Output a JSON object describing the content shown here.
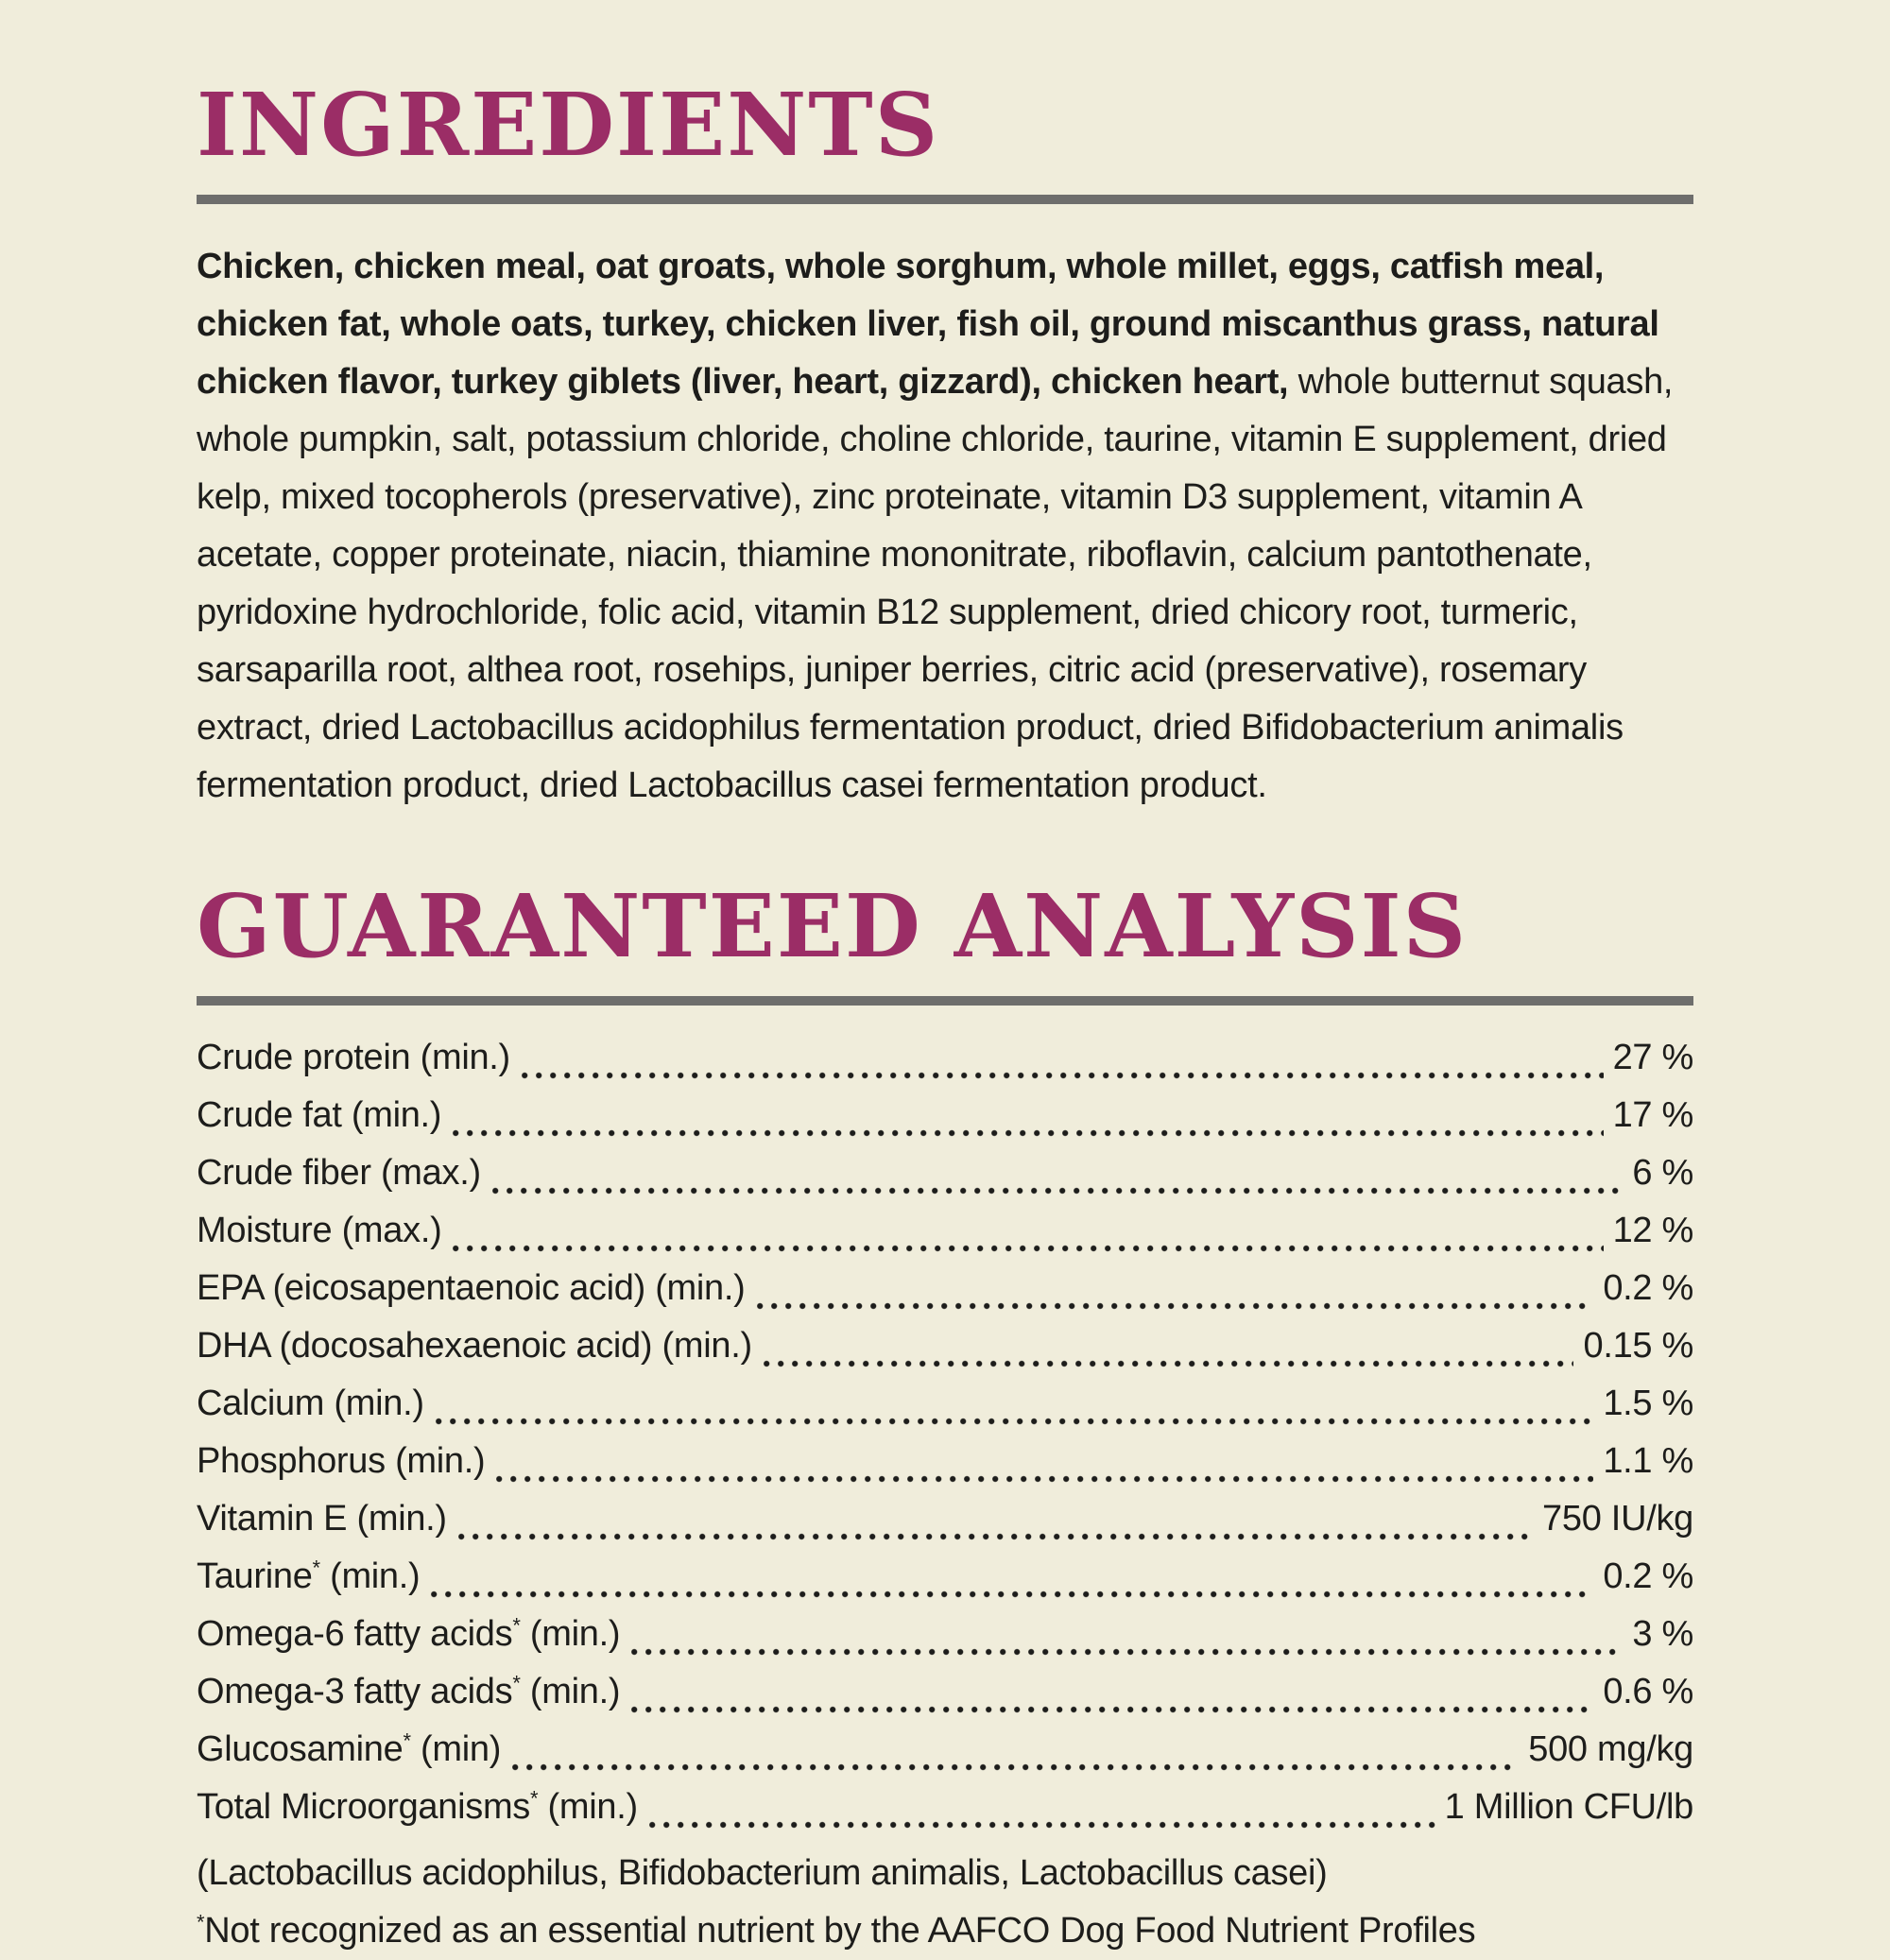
{
  "page": {
    "background_color": "#F0EDDB",
    "accent_color": "#9B2D66",
    "rule_color": "#6E6E6C",
    "text_color": "#1D1D1B"
  },
  "ingredients": {
    "title": "INGREDIENTS",
    "bold_text": "Chicken, chicken meal, oat groats, whole sorghum, whole millet, eggs, catfish meal, chicken fat, whole oats, turkey, chicken liver, fish oil, ground miscanthus grass, natural chicken flavor, turkey giblets (liver, heart, gizzard), chicken heart,",
    "regular_text": " whole butternut squash, whole pumpkin, salt, potassium chloride, choline chloride, taurine, vitamin E supplement, dried kelp, mixed tocopherols (preservative), zinc proteinate, vitamin D3 supplement, vitamin A acetate, copper proteinate, niacin, thiamine mononitrate, riboflavin, calcium pantothenate, pyridoxine hydrochloride, folic acid, vitamin B12 supplement, dried chicory root, turmeric, sarsaparilla root, althea root, rosehips, juniper berries, citric acid (preservative), rosemary extract, dried Lactobacillus acidophilus fermentation product, dried Bifidobacterium animalis fermentation product, dried Lactobacillus casei fermentation product."
  },
  "guaranteed_analysis": {
    "title": "GUARANTEED ANALYSIS",
    "rows": [
      {
        "name": "Crude protein",
        "star": false,
        "qualifier": "(min.)",
        "value": "27 %"
      },
      {
        "name": "Crude fat",
        "star": false,
        "qualifier": "(min.)",
        "value": "17 %"
      },
      {
        "name": "Crude fiber",
        "star": false,
        "qualifier": "(max.)",
        "value": "6 %"
      },
      {
        "name": "Moisture",
        "star": false,
        "qualifier": "(max.)",
        "value": "12 %"
      },
      {
        "name": "EPA (eicosapentaenoic acid)",
        "star": false,
        "qualifier": "(min.)",
        "value": "0.2 %"
      },
      {
        "name": "DHA (docosahexaenoic acid)",
        "star": false,
        "qualifier": "(min.)",
        "value": "0.15 %"
      },
      {
        "name": "Calcium",
        "star": false,
        "qualifier": "(min.)",
        "value": "1.5 %"
      },
      {
        "name": "Phosphorus",
        "star": false,
        "qualifier": "(min.)",
        "value": "1.1 %"
      },
      {
        "name": "Vitamin E",
        "star": false,
        "qualifier": "(min.)",
        "value": "750 IU/kg"
      },
      {
        "name": "Taurine",
        "star": true,
        "qualifier": "(min.)",
        "value": "0.2 %"
      },
      {
        "name": "Omega-6 fatty acids",
        "star": true,
        "qualifier": "(min.)",
        "value": "3 %"
      },
      {
        "name": "Omega-3 fatty acids",
        "star": true,
        "qualifier": "(min.)",
        "value": "0.6 %"
      },
      {
        "name": "Glucosamine",
        "star": true,
        "qualifier": "(min)",
        "value": "500 mg/kg"
      },
      {
        "name": "Total Microorganisms",
        "star": true,
        "qualifier": "(min.)",
        "value": "1 Million CFU/lb"
      }
    ],
    "species_note": "(Lactobacillus acidophilus, Bifidobacterium animalis, Lactobacillus casei)",
    "footnote_star": "*",
    "footnote_text": "Not recognized as an essential nutrient by the AAFCO Dog Food Nutrient Profiles"
  }
}
